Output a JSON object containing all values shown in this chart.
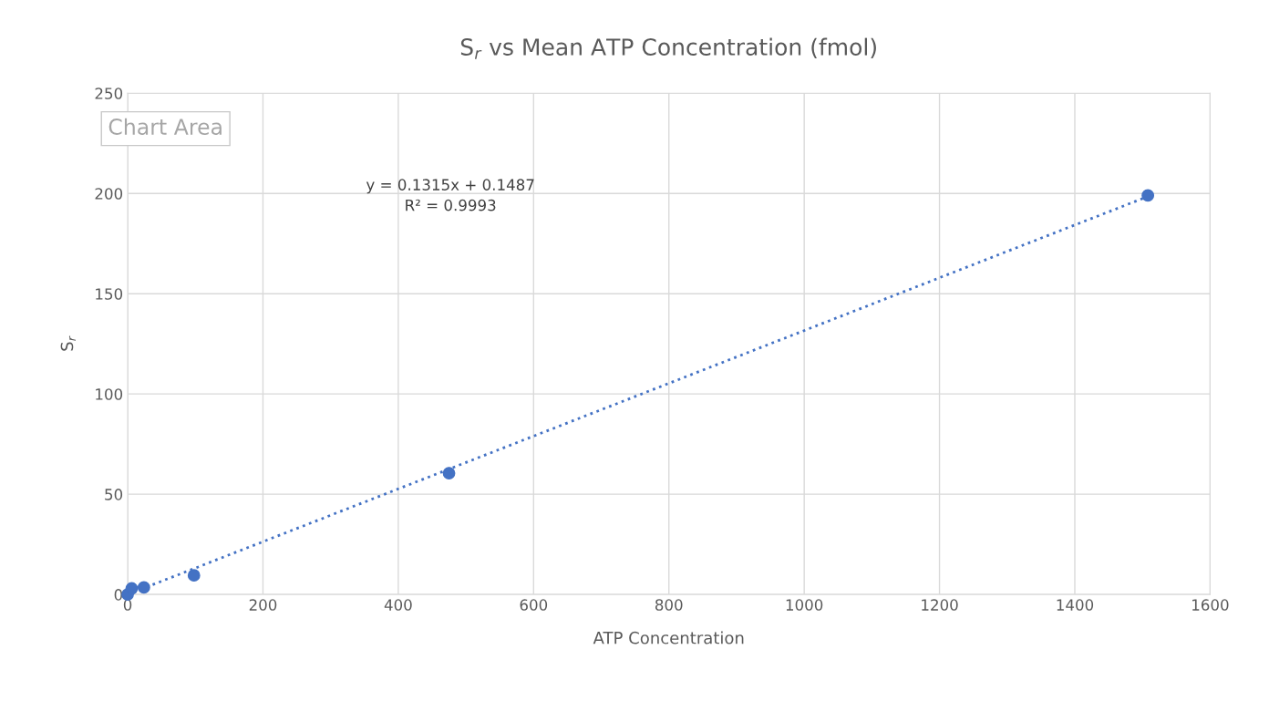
{
  "chart_data": {
    "type": "scatter",
    "title": "S$_{r}$ vs Mean ATP Concentration (fmol)",
    "xlabel": "ATP Concentration",
    "ylabel": "S$_{r}$",
    "series": [
      {
        "color": "#4472c4",
        "marker": "circle",
        "x": [
          0,
          6,
          24,
          98,
          475,
          1508
        ],
        "values": [
          0,
          3,
          3.5,
          9.5,
          60.5,
          199
        ]
      },
      {
        "type": "line",
        "color": "#4472c4",
        "marker": "none",
        "line_style": "dotted",
        "x": [
          0,
          1508
        ],
        "values": [
          0,
          198.5
        ]
      }
    ],
    "annotations": [
      "Chart Area",
      "y = 0.1315x + 0.1487\nR² = 0.9993"
    ],
    "xlim": [
      0,
      1600
    ],
    "xticks": [
      0,
      200,
      400,
      600,
      800,
      1000,
      1200,
      1400,
      1600
    ],
    "ylim": [
      0,
      250
    ],
    "yticks": [
      0,
      50,
      100,
      150,
      200,
      250
    ],
    "grid": true,
    "legend": false
  }
}
